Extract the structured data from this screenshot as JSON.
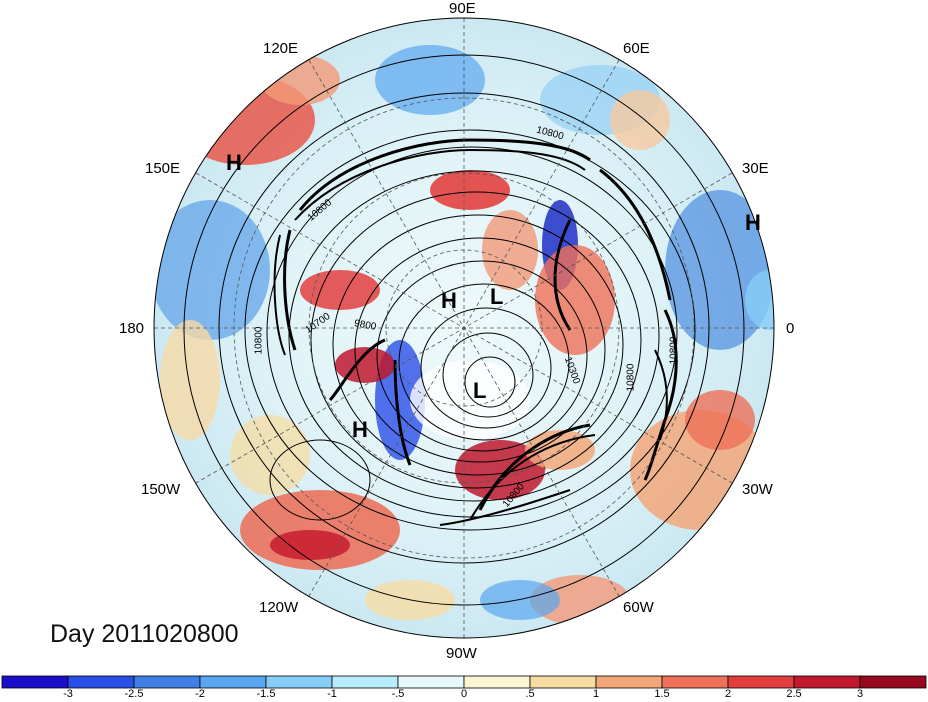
{
  "title": "Day 2011020800",
  "longitude_labels": {
    "deg90E": "90E",
    "deg60E": "60E",
    "deg30E": "30E",
    "deg0": "0",
    "deg30W": "30W",
    "deg60W": "60W",
    "deg90W": "90W",
    "deg120W": "120W",
    "deg150W": "150W",
    "deg180": "180",
    "deg150E": "150E",
    "deg120E": "120E"
  },
  "pressure_centers": [
    {
      "type": "H",
      "label": "H"
    },
    {
      "type": "H",
      "label": "H"
    },
    {
      "type": "H",
      "label": "H"
    },
    {
      "type": "H",
      "label": "H"
    },
    {
      "type": "L",
      "label": "L"
    },
    {
      "type": "L",
      "label": "L"
    }
  ],
  "contour_labels": [
    "10800",
    "10800",
    "10800",
    "10800",
    "10800",
    "10800",
    "10700",
    "9800",
    "10300"
  ],
  "colorbar": {
    "ticks": [
      "-3",
      "-2.5",
      "-2",
      "-1.5",
      "-1",
      "-.5",
      "0",
      ".5",
      "1",
      "1.5",
      "2",
      "2.5",
      "3"
    ],
    "colors": [
      "#1a0ec8",
      "#2a4ee8",
      "#3f7fe6",
      "#5aa7f0",
      "#86cdf8",
      "#b9ecfa",
      "#e6fafa",
      "#fbf5d3",
      "#f7dca2",
      "#f2a77a",
      "#ee7058",
      "#e33e3e",
      "#c0182e",
      "#97081f"
    ]
  }
}
